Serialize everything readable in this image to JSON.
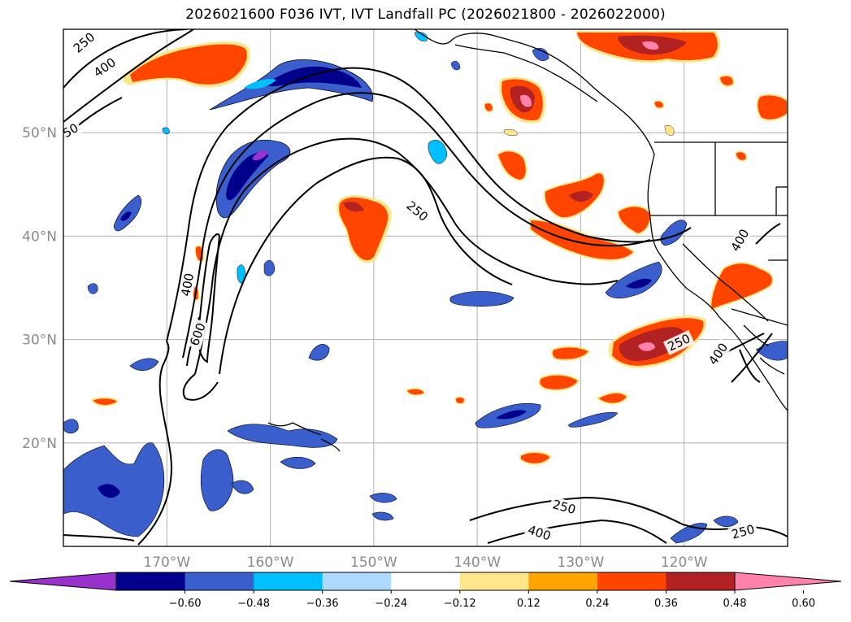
{
  "title": "2026021600 F036 IVT, IVT Landfall PC (2026021800 - 2026022000)",
  "map": {
    "lon_range": [
      -180,
      -110
    ],
    "lat_range": [
      10,
      60
    ],
    "lat_ticks": [
      {
        "value": 50,
        "label": "50°N"
      },
      {
        "value": 40,
        "label": "40°N"
      },
      {
        "value": 30,
        "label": "30°N"
      },
      {
        "value": 20,
        "label": "20°N"
      }
    ],
    "lon_ticks": [
      {
        "value": -170,
        "label": "170°W"
      },
      {
        "value": -160,
        "label": "160°W"
      },
      {
        "value": -150,
        "label": "150°W"
      },
      {
        "value": -140,
        "label": "140°W"
      },
      {
        "value": -130,
        "label": "130°W"
      },
      {
        "value": -120,
        "label": "120°W"
      }
    ],
    "grid": true,
    "contour_labels": [
      {
        "text": "250",
        "lon": -178,
        "lat": 58.7,
        "rot": -40
      },
      {
        "text": "400",
        "lon": -176,
        "lat": 56.3,
        "rot": -35
      },
      {
        "text": "50",
        "lon": -179.3,
        "lat": 50.2,
        "rot": -30
      },
      {
        "text": "250",
        "lon": -145.8,
        "lat": 42.4,
        "rot": 40
      },
      {
        "text": "400",
        "lon": -168,
        "lat": 35.3,
        "rot": -80
      },
      {
        "text": "600",
        "lon": -167,
        "lat": 30.5,
        "rot": -70
      },
      {
        "text": "250",
        "lon": -120.5,
        "lat": 29.7,
        "rot": -25
      },
      {
        "text": "400",
        "lon": -116.7,
        "lat": 28.6,
        "rot": -55
      },
      {
        "text": "400",
        "lon": -114.6,
        "lat": 39.6,
        "rot": -60
      },
      {
        "text": "250",
        "lon": -131.6,
        "lat": 13.8,
        "rot": 15
      },
      {
        "text": "400",
        "lon": -134,
        "lat": 11.3,
        "rot": 18
      },
      {
        "text": "250",
        "lon": -114.3,
        "lat": 11.4,
        "rot": -15
      }
    ]
  },
  "colorbar": {
    "colors": [
      "#9932cc",
      "#00008b",
      "#3a5fcd",
      "#00bfff",
      "#add8ff",
      "#ffffff",
      "#ffe68a",
      "#ffa500",
      "#ff4500",
      "#b22222",
      "#ff82ab"
    ],
    "ticks": [
      "−0.60",
      "−0.48",
      "−0.36",
      "−0.24",
      "−0.12",
      "0.12",
      "0.24",
      "0.36",
      "0.48",
      "0.60"
    ]
  }
}
